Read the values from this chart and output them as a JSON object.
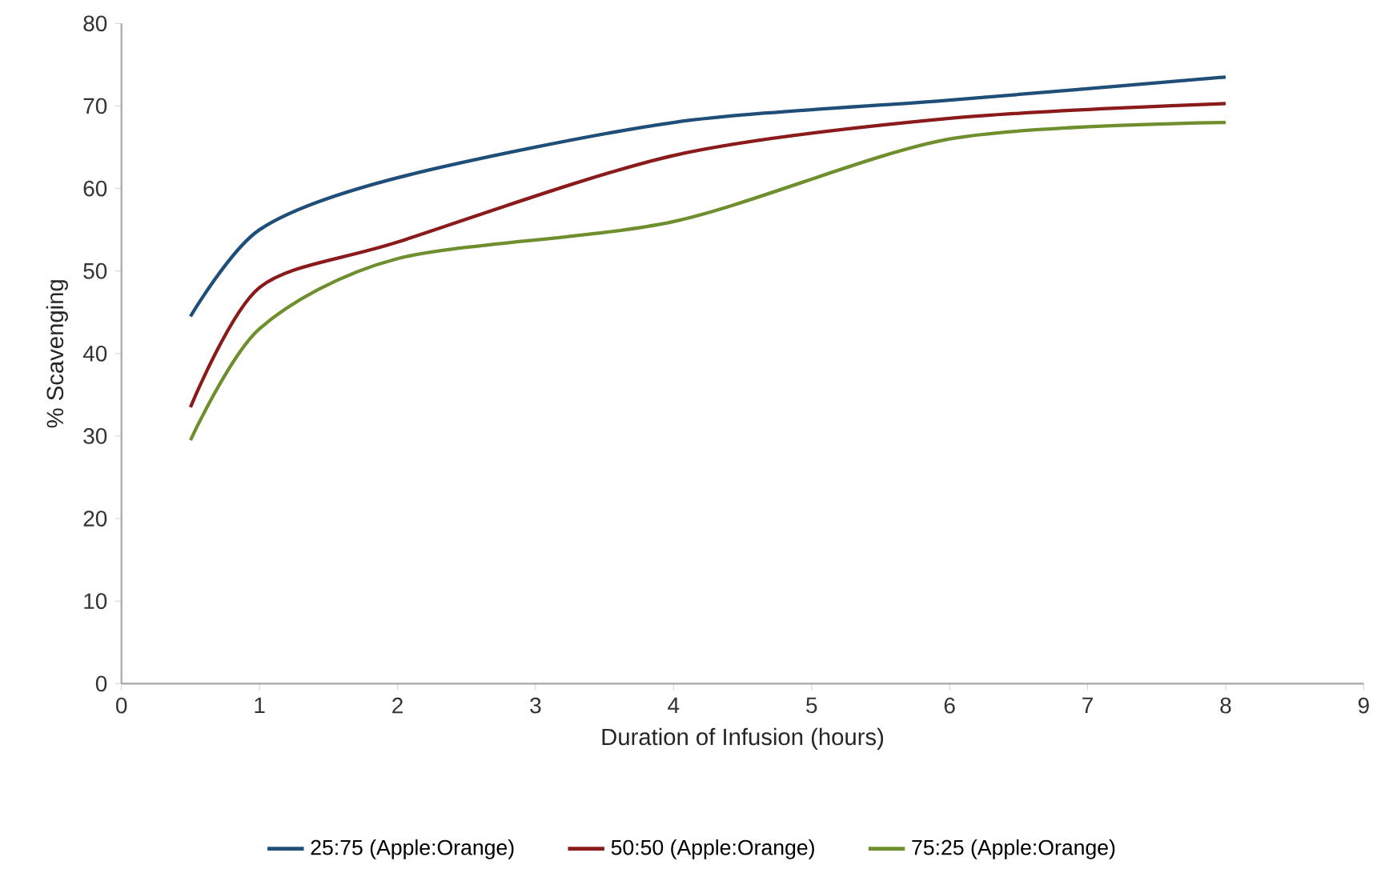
{
  "chart_data": {
    "type": "line",
    "xlabel": "Duration of Infusion (hours)",
    "ylabel": "% Scavenging",
    "x": [
      0.5,
      1,
      2,
      4,
      6,
      8
    ],
    "series": [
      {
        "name": "25:75 (Apple:Orange)",
        "color": "#1f4e79",
        "values": [
          44.5,
          55,
          61.3,
          68,
          70.7,
          73.5
        ]
      },
      {
        "name": "50:50 (Apple:Orange)",
        "color": "#8b1a1a",
        "values": [
          33.5,
          48,
          53.5,
          64,
          68.5,
          70.3
        ]
      },
      {
        "name": "75:25 (Apple:Orange)",
        "color": "#6f8f2f",
        "values": [
          29.5,
          43,
          51.5,
          56,
          66,
          68
        ]
      }
    ],
    "xlim": [
      0,
      9
    ],
    "ylim": [
      0,
      80
    ],
    "xticks": [
      0,
      1,
      2,
      3,
      4,
      5,
      6,
      7,
      8,
      9
    ],
    "yticks": [
      0,
      10,
      20,
      30,
      40,
      50,
      60,
      70,
      80
    ],
    "legend": "bottom"
  }
}
